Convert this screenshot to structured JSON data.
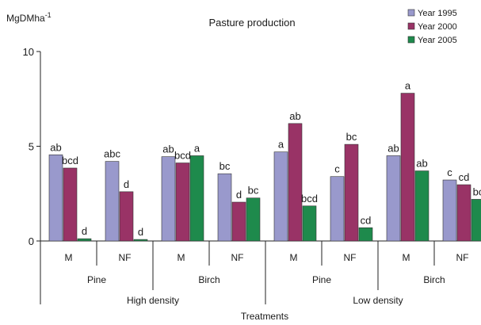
{
  "chart_data": {
    "type": "bar",
    "title": "Pasture production",
    "ylabel": "MgDMha",
    "ylabel_superscript": "-1",
    "xlabel": "Treatments",
    "ylim": [
      0,
      10
    ],
    "yticks": [
      "0",
      "5",
      "10"
    ],
    "legend_position": "top-right",
    "grid": false,
    "categories": [
      {
        "treatment": "M",
        "species": "Pine",
        "density": "High density"
      },
      {
        "treatment": "NF",
        "species": "Pine",
        "density": "High density"
      },
      {
        "treatment": "M",
        "species": "Birch",
        "density": "High density"
      },
      {
        "treatment": "NF",
        "species": "Birch",
        "density": "High density"
      },
      {
        "treatment": "M",
        "species": "Pine",
        "density": "Low density"
      },
      {
        "treatment": "NF",
        "species": "Pine",
        "density": "Low density"
      },
      {
        "treatment": "M",
        "species": "Birch",
        "density": "Low density"
      },
      {
        "treatment": "NF",
        "species": "Birch",
        "density": "Low density"
      }
    ],
    "species_groups": [
      "Pine",
      "Birch",
      "Pine",
      "Birch"
    ],
    "density_groups": [
      "High density",
      "Low density"
    ],
    "series": [
      {
        "name": "Year 1995",
        "color": "#9999cc",
        "values": [
          4.55,
          4.2,
          4.45,
          3.55,
          4.7,
          3.4,
          4.5,
          3.22
        ],
        "labels": [
          "ab",
          "abc",
          "ab",
          "bc",
          "a",
          "c",
          "ab",
          "c"
        ]
      },
      {
        "name": "Year 2000",
        "color": "#993366",
        "values": [
          3.85,
          2.6,
          4.12,
          2.05,
          6.2,
          5.1,
          7.8,
          2.97
        ],
        "labels": [
          "bcd",
          "d",
          "bcd",
          "d",
          "ab",
          "bc",
          "a",
          "cd"
        ]
      },
      {
        "name": "Year 2005",
        "color": "#1e8a4c",
        "values": [
          0.12,
          0.08,
          4.5,
          2.27,
          1.85,
          0.7,
          3.7,
          2.2
        ],
        "labels": [
          "d",
          "d",
          "a",
          "bc",
          "bcd",
          "cd",
          "ab",
          "bc"
        ]
      }
    ]
  }
}
